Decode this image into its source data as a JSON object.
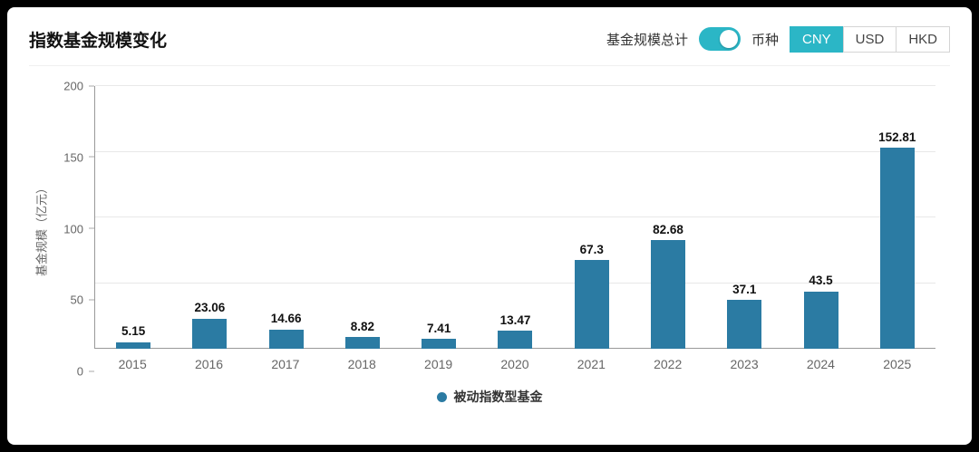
{
  "header": {
    "title": "指数基金规模变化",
    "toggle_label": "基金规模总计",
    "toggle_on": true,
    "currency_label": "币种",
    "currencies": [
      {
        "label": "CNY",
        "active": true
      },
      {
        "label": "USD",
        "active": false
      },
      {
        "label": "HKD",
        "active": false
      }
    ]
  },
  "colors": {
    "accent": "#2bb6c6",
    "bar": "#2b7ba3"
  },
  "chart_data": {
    "type": "bar",
    "title": "指数基金规模变化",
    "categories": [
      "2015",
      "2016",
      "2017",
      "2018",
      "2019",
      "2020",
      "2021",
      "2022",
      "2023",
      "2024",
      "2025"
    ],
    "values": [
      5.15,
      23.06,
      14.66,
      8.82,
      7.41,
      13.47,
      67.3,
      82.68,
      37.1,
      43.5,
      152.81
    ],
    "xlabel": "",
    "ylabel": "基金规模（亿元）",
    "ylim": [
      0,
      200
    ],
    "yticks": [
      0,
      50,
      100,
      150,
      200
    ],
    "grid": true,
    "legend_position": "bottom",
    "legend_label": "被动指数型基金"
  }
}
